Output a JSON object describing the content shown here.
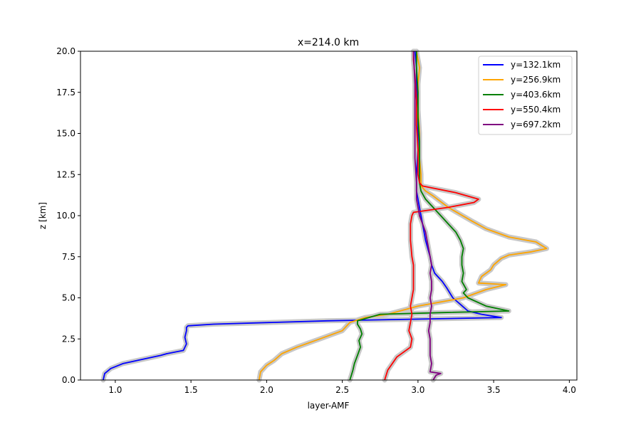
{
  "chart_data": {
    "type": "line",
    "title": "x=214.0 km",
    "xlabel": "layer-AMF",
    "ylabel": "z [km]",
    "xlim": [
      0.77,
      4.05
    ],
    "ylim": [
      0,
      20
    ],
    "xticks": [
      1.0,
      1.5,
      2.0,
      2.5,
      3.0,
      3.5,
      4.0
    ],
    "yticks": [
      0.0,
      2.5,
      5.0,
      7.5,
      10.0,
      12.5,
      15.0,
      17.5,
      20.0
    ],
    "xtick_labels": [
      "1.0",
      "1.5",
      "2.0",
      "2.5",
      "3.0",
      "3.5",
      "4.0"
    ],
    "ytick_labels": [
      "0.0",
      "2.5",
      "5.0",
      "7.5",
      "10.0",
      "12.5",
      "15.0",
      "17.5",
      "20.0"
    ],
    "grid": false,
    "legend_position": "top-right",
    "uncertainty_band_color": "#c8c8c8",
    "series": [
      {
        "name": "y=132.1km",
        "color": "#0000ff",
        "x": [
          0.92,
          0.93,
          0.97,
          1.05,
          1.15,
          1.3,
          1.34,
          1.45,
          1.47,
          1.46,
          1.47,
          1.47,
          1.48,
          1.65,
          2.4,
          3.55,
          3.42,
          3.33,
          3.28,
          3.23,
          3.19,
          3.16,
          3.11,
          3.09,
          3.08,
          3.05,
          3.03,
          3.01,
          3.0,
          2.99,
          2.99,
          3.0,
          3.0,
          3.0,
          2.99,
          2.99,
          2.98
        ],
        "y": [
          0.0,
          0.4,
          0.7,
          1.0,
          1.2,
          1.5,
          1.6,
          1.8,
          2.2,
          2.6,
          3.0,
          3.2,
          3.3,
          3.4,
          3.6,
          3.8,
          4.0,
          4.2,
          4.6,
          5.0,
          5.6,
          6.0,
          6.5,
          7.0,
          7.5,
          8.5,
          9.5,
          10.5,
          11.0,
          11.5,
          12.5,
          14.0,
          15.0,
          16.5,
          18.0,
          19.0,
          20.0
        ]
      },
      {
        "name": "y=256.9km",
        "color": "#ffa500",
        "x": [
          1.95,
          1.96,
          2.0,
          2.05,
          2.1,
          2.2,
          2.35,
          2.5,
          2.55,
          2.65,
          2.8,
          3.0,
          3.3,
          3.45,
          3.58,
          3.4,
          3.42,
          3.48,
          3.5,
          3.55,
          3.6,
          3.75,
          3.85,
          3.78,
          3.6,
          3.45,
          3.35,
          3.2,
          3.1,
          3.05,
          3.02,
          3.02,
          3.01,
          3.01,
          3.0,
          3.0,
          3.01,
          2.99
        ],
        "y": [
          0.0,
          0.5,
          0.9,
          1.2,
          1.6,
          2.0,
          2.5,
          3.0,
          3.5,
          3.8,
          4.0,
          4.5,
          5.0,
          5.5,
          5.8,
          5.9,
          6.3,
          6.7,
          7.0,
          7.4,
          7.6,
          7.8,
          8.0,
          8.4,
          8.7,
          9.2,
          9.7,
          10.5,
          11.2,
          11.5,
          11.8,
          12.5,
          13.5,
          15.0,
          16.5,
          18.0,
          19.0,
          20.0
        ]
      },
      {
        "name": "y=403.6km",
        "color": "#008000",
        "x": [
          2.55,
          2.56,
          2.57,
          2.58,
          2.6,
          2.62,
          2.61,
          2.63,
          2.62,
          2.6,
          2.6,
          2.75,
          3.15,
          3.6,
          3.45,
          3.33,
          3.3,
          3.32,
          3.29,
          3.3,
          3.29,
          3.29,
          3.3,
          3.28,
          3.25,
          3.2,
          3.15,
          3.1,
          3.05,
          3.02,
          3.01,
          3.01,
          3.01,
          3.0,
          3.0,
          2.99,
          2.99
        ],
        "y": [
          0.0,
          0.3,
          0.6,
          1.0,
          1.5,
          2.0,
          2.4,
          2.8,
          3.1,
          3.4,
          3.6,
          4.0,
          4.1,
          4.2,
          4.5,
          5.0,
          5.3,
          5.5,
          6.0,
          6.5,
          7.0,
          7.5,
          8.0,
          8.5,
          9.0,
          9.5,
          10.0,
          10.5,
          11.0,
          11.5,
          12.0,
          13.0,
          14.5,
          16.0,
          17.5,
          19.0,
          20.0
        ]
      },
      {
        "name": "y=550.4km",
        "color": "#ff0000",
        "x": [
          2.78,
          2.8,
          2.83,
          2.86,
          2.95,
          2.96,
          2.94,
          2.95,
          2.96,
          2.95,
          2.96,
          2.97,
          2.97,
          2.97,
          2.97,
          2.96,
          2.95,
          2.95,
          2.96,
          2.97,
          3.2,
          3.37,
          3.4,
          3.25,
          3.03,
          3.01,
          3.0,
          3.0,
          2.99,
          2.99,
          2.98,
          2.97,
          2.97
        ],
        "y": [
          0.0,
          0.6,
          1.0,
          1.4,
          2.0,
          2.5,
          3.0,
          3.5,
          4.0,
          4.5,
          5.0,
          5.5,
          6.0,
          6.5,
          7.0,
          7.5,
          8.5,
          9.5,
          10.0,
          10.2,
          10.5,
          10.8,
          11.0,
          11.4,
          11.8,
          12.0,
          12.5,
          14.0,
          15.5,
          17.0,
          18.5,
          19.5,
          20.0
        ]
      },
      {
        "name": "y=697.2km",
        "color": "#800080",
        "x": [
          3.1,
          3.12,
          3.15,
          3.08,
          3.09,
          3.08,
          3.08,
          3.08,
          3.07,
          3.08,
          3.08,
          3.09,
          3.08,
          3.09,
          3.09,
          3.08,
          3.09,
          3.08,
          3.07,
          3.06,
          3.05,
          3.03,
          3.01,
          3.0,
          2.99,
          2.99,
          2.98,
          2.98,
          2.98,
          2.98,
          2.97
        ],
        "y": [
          0.0,
          0.3,
          0.4,
          0.5,
          1.0,
          1.5,
          2.0,
          2.5,
          3.0,
          3.5,
          4.0,
          4.5,
          5.0,
          5.5,
          6.0,
          6.5,
          7.0,
          7.5,
          8.0,
          8.5,
          9.0,
          9.5,
          10.0,
          10.5,
          11.0,
          12.0,
          13.5,
          15.0,
          16.5,
          18.0,
          20.0
        ]
      }
    ]
  }
}
